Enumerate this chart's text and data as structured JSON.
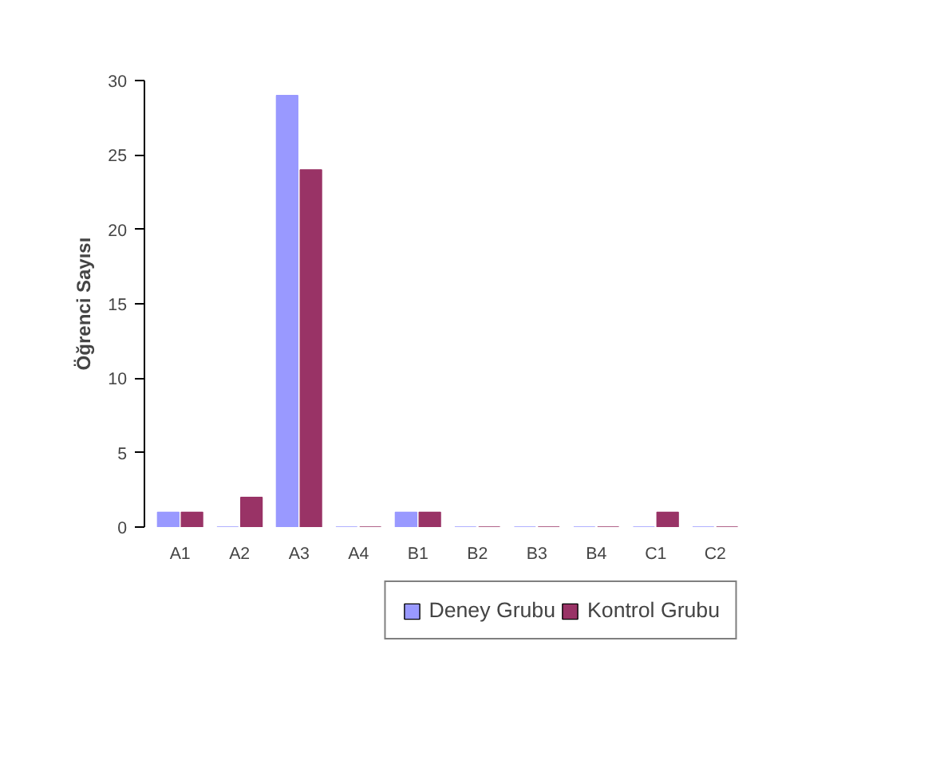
{
  "chart_data": {
    "type": "bar",
    "ylabel": "Öğrenci Sayısı",
    "categories": [
      "A1",
      "A2",
      "A3",
      "A4",
      "B1",
      "B2",
      "B3",
      "B4",
      "C1",
      "C2"
    ],
    "series": [
      {
        "name": "Deney Grubu",
        "color": "#9999ff",
        "values": [
          1,
          0,
          29,
          0,
          1,
          0,
          0,
          0,
          0,
          0
        ]
      },
      {
        "name": "Kontrol Grubu",
        "color": "#993366",
        "values": [
          1,
          2,
          24,
          0,
          1,
          0,
          0,
          0,
          1,
          0
        ]
      }
    ],
    "ylim": [
      0,
      30
    ],
    "yticks": [
      0,
      5,
      10,
      15,
      20,
      25,
      30
    ],
    "grid": false,
    "legend": "bottom right"
  }
}
